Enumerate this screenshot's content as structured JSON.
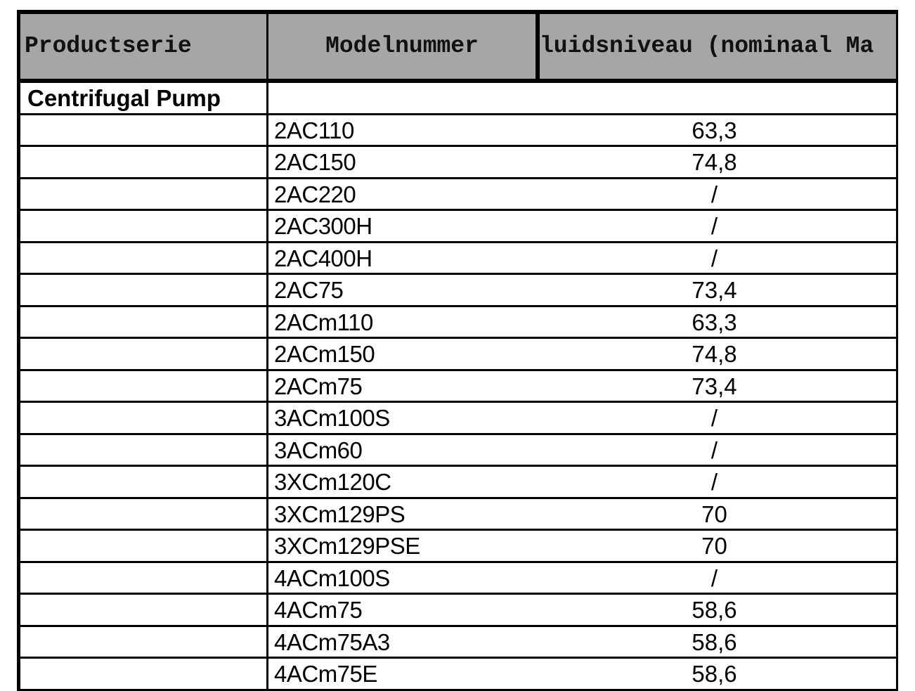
{
  "table": {
    "headers": [
      "Productserie",
      "Modelnummer",
      "luidsniveau (nominaal Ma"
    ],
    "group_label": "Centrifugal Pump",
    "rows": [
      {
        "model": "2AC110",
        "value": "63,3"
      },
      {
        "model": "2AC150",
        "value": "74,8"
      },
      {
        "model": "2AC220",
        "value": "/"
      },
      {
        "model": "2AC300H",
        "value": "/"
      },
      {
        "model": "2AC400H",
        "value": "/"
      },
      {
        "model": "2AC75",
        "value": "73,4"
      },
      {
        "model": "2ACm110",
        "value": "63,3"
      },
      {
        "model": "2ACm150",
        "value": "74,8"
      },
      {
        "model": "2ACm75",
        "value": "73,4"
      },
      {
        "model": "3ACm100S",
        "value": "/"
      },
      {
        "model": "3ACm60",
        "value": "/"
      },
      {
        "model": "3XCm120C",
        "value": "/"
      },
      {
        "model": "3XCm129PS",
        "value": "70"
      },
      {
        "model": "3XCm129PSE",
        "value": "70"
      },
      {
        "model": "4ACm100S",
        "value": "/"
      },
      {
        "model": "4ACm75",
        "value": "58,6"
      },
      {
        "model": "4ACm75A3",
        "value": "58,6"
      },
      {
        "model": "4ACm75E",
        "value": "58,6"
      }
    ]
  },
  "colors": {
    "header_bg": "#a6a6a6",
    "border": "#000000"
  }
}
